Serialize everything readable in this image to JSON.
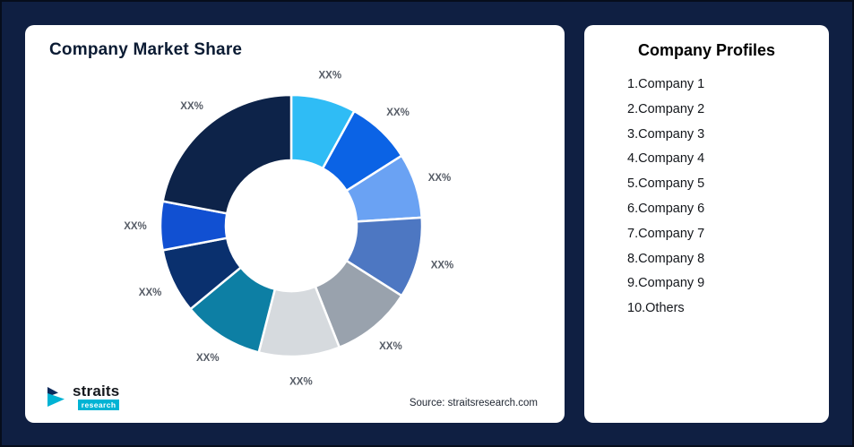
{
  "window": {
    "background": "#0f1f42"
  },
  "market_share_card": {
    "title": "Company Market Share",
    "source_note": "Source: straitsresearch.com"
  },
  "logo": {
    "brand": "straits",
    "tagline": "research",
    "icon": "straits-arrow-icon",
    "accent_color": "#00b3d4"
  },
  "profiles_card": {
    "title": "Company Profiles",
    "items": [
      "1.Company 1",
      "2.Company 2",
      "3.Company 3",
      "4.Company 4",
      "5.Company 5",
      "6.Company 6",
      "7.Company 7",
      "8.Company 8",
      "9.Company 9",
      "10.Others"
    ]
  },
  "chart_data": {
    "type": "pie",
    "variant": "donut",
    "title": "Company Market Share",
    "legend_position": "none",
    "start_angle_deg": -90,
    "direction": "clockwise",
    "note": "All slice values are shown as placeholder labels XX%; numeric values below are visual estimates of arc sizes.",
    "segments": [
      {
        "name": "Company 1",
        "label": "XX%",
        "value": 8,
        "color": "#2fbcf5"
      },
      {
        "name": "Company 2",
        "label": "XX%",
        "value": 8,
        "color": "#0b63e5"
      },
      {
        "name": "Company 3",
        "label": "XX%",
        "value": 8,
        "color": "#6aa2f3"
      },
      {
        "name": "Company 4",
        "label": "XX%",
        "value": 10,
        "color": "#4d77c2"
      },
      {
        "name": "Company 5",
        "label": "XX%",
        "value": 10,
        "color": "#99a2ad"
      },
      {
        "name": "Company 6",
        "label": "XX%",
        "value": 10,
        "color": "#d6dade"
      },
      {
        "name": "Company 7",
        "label": "XX%",
        "value": 10,
        "color": "#0d7fa4"
      },
      {
        "name": "Company 8",
        "label": "XX%",
        "value": 8,
        "color": "#0a306e"
      },
      {
        "name": "Company 9",
        "label": "XX%",
        "value": 6,
        "color": "#1150d2"
      },
      {
        "name": "Others",
        "label": "XX%",
        "value": 22,
        "color": "#0d2349"
      }
    ]
  }
}
